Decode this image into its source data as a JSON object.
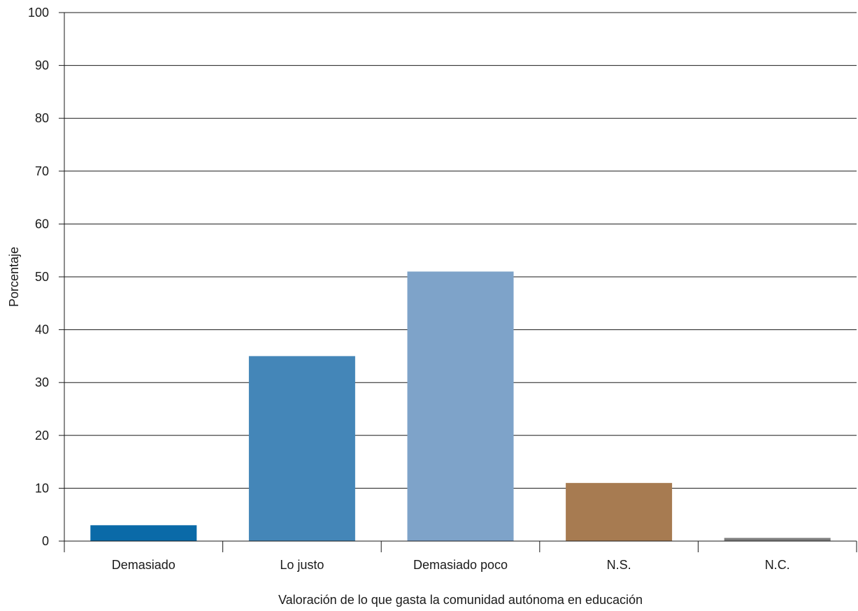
{
  "chart_data": {
    "type": "bar",
    "title": "",
    "xlabel": "Valoración de lo que gasta la comunidad autónoma en educación",
    "ylabel": "Porcentaje",
    "categories": [
      "Demasiado",
      "Lo justo",
      "Demasiado poco",
      "N.S.",
      "N.C."
    ],
    "values": [
      3,
      35,
      51,
      11,
      0.6
    ],
    "colors": [
      "#0a6aa8",
      "#4486b8",
      "#7ea3c9",
      "#a77b51",
      "#7d7d7d"
    ],
    "ylim": [
      0,
      100
    ],
    "yticks": [
      "0",
      "10",
      "20",
      "30",
      "40",
      "50",
      "60",
      "70",
      "80",
      "90",
      "100"
    ],
    "grid": true,
    "legend": "none"
  }
}
